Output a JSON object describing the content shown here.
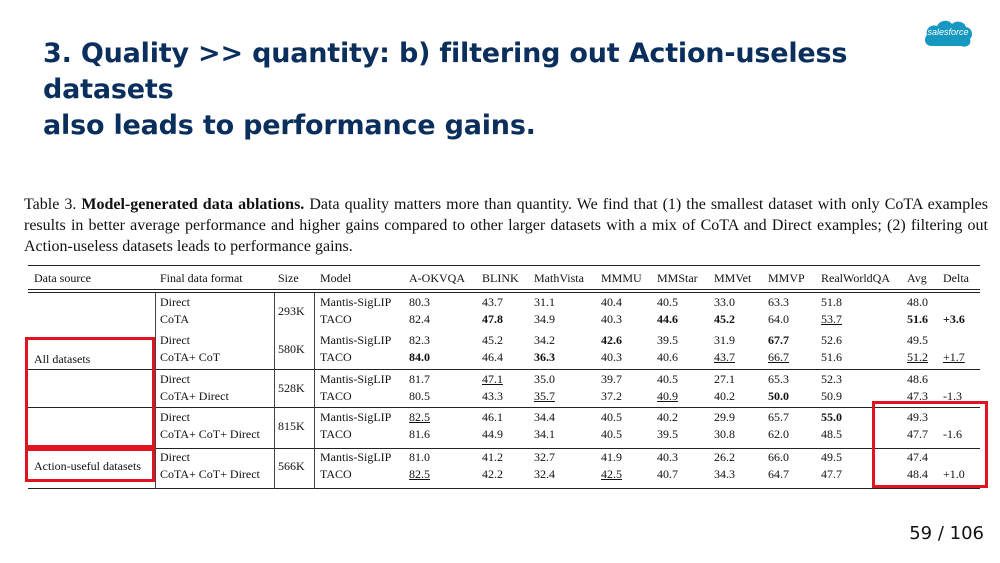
{
  "slide": {
    "title_line1": "3. Quality >> quantity: b) filtering out Action-useless datasets",
    "title_line2": "also leads to performance gains.",
    "logo_text": "salesforce",
    "page_number": "59 / 106"
  },
  "caption": {
    "label": "Table 3.",
    "bold": "Model-generated data ablations.",
    "text": "Data quality matters more than quantity. We find that (1) the smallest dataset with only CoTA examples results in better average performance and higher gains compared to other larger datasets with a mix of CoTA and Direct examples; (2) filtering out Action-useless datasets leads to performance gains."
  },
  "table": {
    "headers": [
      "Data source",
      "Final data format",
      "Size",
      "Model",
      "A-OKVQA",
      "BLINK",
      "MathVista",
      "MMMU",
      "MMStar",
      "MMVet",
      "MMVP",
      "RealWorldQA",
      "Avg",
      "Delta"
    ],
    "sources": [
      "All datasets",
      "Action-useful datasets"
    ],
    "groups": [
      {
        "size": "293K",
        "rows": [
          [
            "Direct",
            "Mantis-SigLIP",
            "80.3",
            "43.7",
            "31.1",
            "40.4",
            "40.5",
            "33.0",
            "63.3",
            "51.8",
            "48.0",
            ""
          ],
          [
            "CoTA",
            "TACO",
            "82.4",
            "47.8",
            "34.9",
            "40.3",
            "44.6",
            "45.2",
            "64.0",
            "53.7",
            "51.6",
            "+3.6"
          ]
        ]
      },
      {
        "size": "580K",
        "rows": [
          [
            "Direct",
            "Mantis-SigLIP",
            "82.3",
            "45.2",
            "34.2",
            "42.6",
            "39.5",
            "31.9",
            "67.7",
            "52.6",
            "49.5",
            ""
          ],
          [
            "CoTA+ CoT",
            "TACO",
            "84.0",
            "46.4",
            "36.3",
            "40.3",
            "40.6",
            "43.7",
            "66.7",
            "51.6",
            "51.2",
            "+1.7"
          ]
        ]
      },
      {
        "size": "528K",
        "rows": [
          [
            "Direct",
            "Mantis-SigLIP",
            "81.7",
            "47.1",
            "35.0",
            "39.7",
            "40.5",
            "27.1",
            "65.3",
            "52.3",
            "48.6",
            ""
          ],
          [
            "CoTA+ Direct",
            "TACO",
            "80.5",
            "43.3",
            "35.7",
            "37.2",
            "40.9",
            "40.2",
            "50.0",
            "50.9",
            "47.3",
            "-1.3"
          ]
        ]
      },
      {
        "size": "815K",
        "rows": [
          [
            "Direct",
            "Mantis-SigLIP",
            "82.5",
            "46.1",
            "34.4",
            "40.5",
            "40.2",
            "29.9",
            "65.7",
            "55.0",
            "49.3",
            ""
          ],
          [
            "CoTA+ CoT+ Direct",
            "TACO",
            "81.6",
            "44.9",
            "34.1",
            "40.5",
            "39.5",
            "30.8",
            "62.0",
            "48.5",
            "47.7",
            "-1.6"
          ]
        ]
      },
      {
        "size": "566K",
        "rows": [
          [
            "Direct",
            "Mantis-SigLIP",
            "81.0",
            "41.2",
            "32.7",
            "41.9",
            "40.3",
            "26.2",
            "66.0",
            "49.5",
            "47.4",
            ""
          ],
          [
            "CoTA+ CoT+ Direct",
            "TACO",
            "82.5",
            "42.2",
            "32.4",
            "42.5",
            "40.7",
            "34.3",
            "64.7",
            "47.7",
            "48.4",
            "+1.0"
          ]
        ]
      }
    ],
    "bold_cells": [
      "0-1-3",
      "0-1-6",
      "0-1-7",
      "0-1-10",
      "0-1-11",
      "1-0-5",
      "1-0-8",
      "1-1-2",
      "1-1-4",
      "2-1-8",
      "3-0-9"
    ],
    "underline_cells": [
      "0-1-9",
      "1-1-7",
      "1-1-8",
      "1-1-10",
      "1-1-11",
      "2-0-3",
      "2-1-4",
      "2-1-6",
      "2-1-10",
      "3-0-2",
      "4-1-2",
      "4-1-5"
    ],
    "highlight_color": "#e0141e"
  }
}
